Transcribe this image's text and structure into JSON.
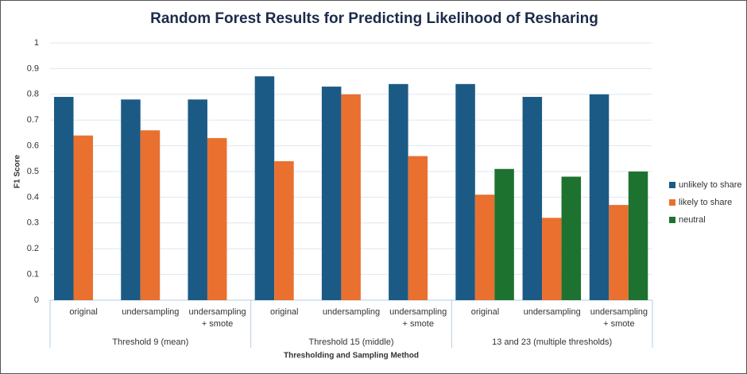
{
  "chart_data": {
    "type": "bar",
    "title": "Random Forest Results for Predicting Likelihood of Resharing",
    "x_label": "Thresholding and Sampling Method",
    "y_label": "F1 Score",
    "categories": [
      "original",
      "undersampling",
      "undersampling + smote",
      "original",
      "undersampling",
      "undersampling + smote",
      "original",
      "undersampling",
      "undersampling + smote"
    ],
    "category_groups": [
      "Threshold 9 (mean)",
      "Threshold 15 (middle)",
      "13 and 23 (multiple thresholds)"
    ],
    "series": [
      {
        "name": "unlikely to share",
        "color": "#1c5a86",
        "values": [
          0.79,
          0.78,
          0.78,
          0.87,
          0.83,
          0.84,
          0.84,
          0.79,
          0.8
        ]
      },
      {
        "name": "likely to share",
        "color": "#e9702f",
        "values": [
          0.64,
          0.66,
          0.63,
          0.54,
          0.8,
          0.56,
          0.41,
          0.32,
          0.37
        ]
      },
      {
        "name": "neutral",
        "color": "#1d7230",
        "values": [
          null,
          null,
          null,
          null,
          null,
          null,
          0.51,
          0.48,
          0.5
        ]
      }
    ],
    "ylim": [
      0,
      1
    ],
    "yticks": [
      0,
      0.1,
      0.2,
      0.3,
      0.4,
      0.5,
      0.6,
      0.7,
      0.8,
      0.9,
      1
    ],
    "grid": true,
    "legend": "right"
  }
}
